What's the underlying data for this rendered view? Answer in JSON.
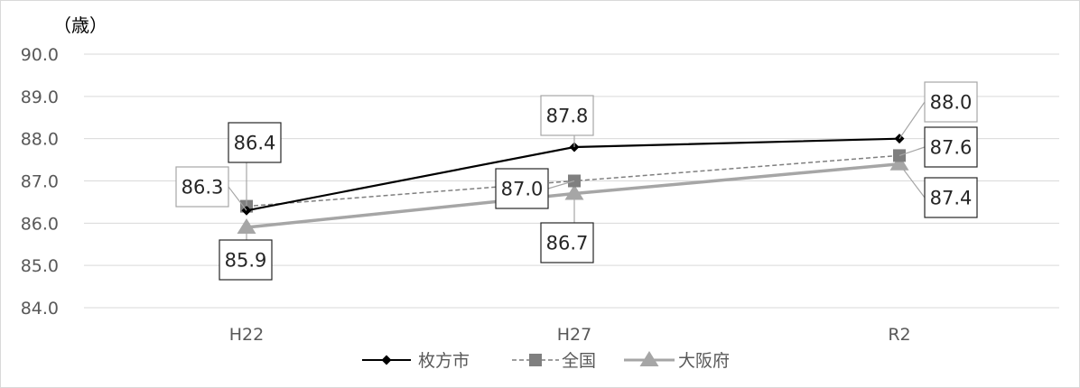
{
  "chart_data": {
    "type": "line",
    "unit_label": "（歳）",
    "categories": [
      "H22",
      "H27",
      "R2"
    ],
    "ylim": [
      84.0,
      90.0
    ],
    "y_ticks": [
      "84.0",
      "85.0",
      "86.0",
      "87.0",
      "88.0",
      "89.0",
      "90.0"
    ],
    "grid": true,
    "legend_position": "bottom",
    "series": [
      {
        "name": "枚方市",
        "values": [
          86.3,
          87.8,
          88.0
        ],
        "labels": [
          "86.3",
          "87.8",
          "88.0"
        ],
        "color": "#000000",
        "marker": "diamond",
        "line_style": "solid"
      },
      {
        "name": "全国",
        "values": [
          86.4,
          87.0,
          87.6
        ],
        "labels": [
          "86.4",
          "87.0",
          "87.6"
        ],
        "color": "#7f7f7f",
        "marker": "square",
        "line_style": "dashed"
      },
      {
        "name": "大阪府",
        "values": [
          85.9,
          86.7,
          87.4
        ],
        "labels": [
          "85.9",
          "86.7",
          "87.4"
        ],
        "color": "#a6a6a6",
        "marker": "triangle",
        "line_style": "solid"
      }
    ]
  }
}
